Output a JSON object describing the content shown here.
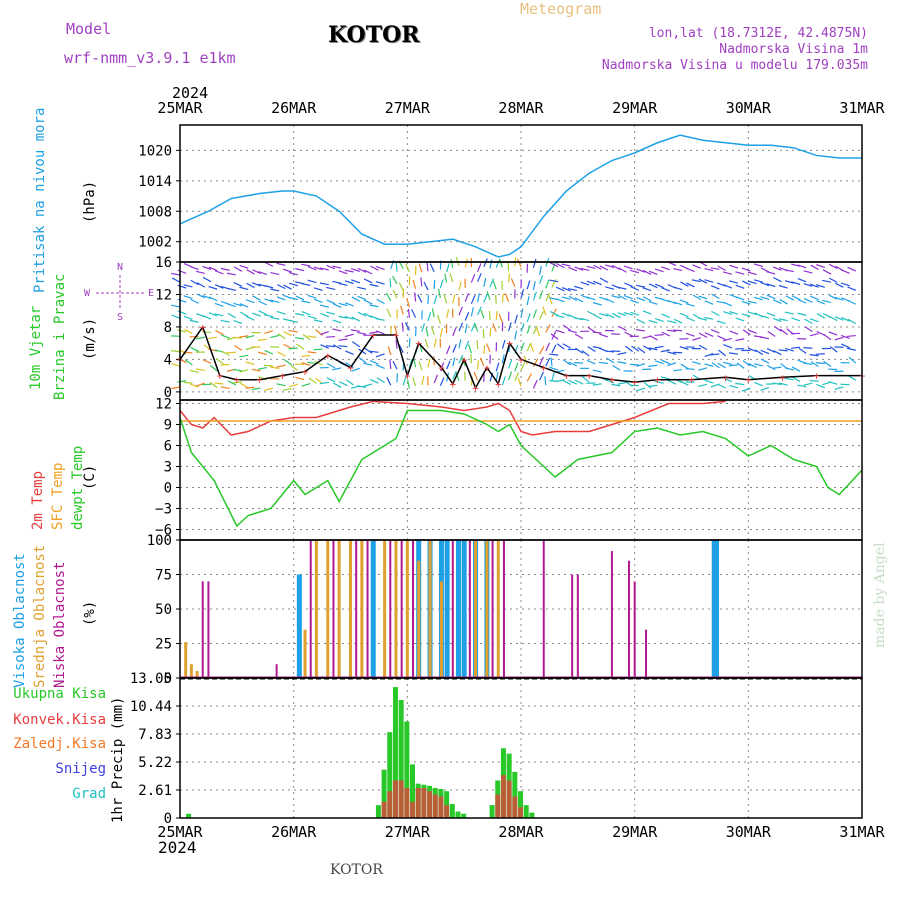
{
  "header": {
    "model_label": "Model",
    "model_name": "wrf-nmm_v3.9.1  e1km",
    "station": "KOTOR",
    "meteogram_label": "Meteogram",
    "lonlat": "lon,lat (18.7312E, 42.4875N)",
    "elevation": "Nadmorska Visina 1m",
    "model_elevation": "Nadmorska Visina u modelu 179.035m",
    "year": "2024",
    "footer_station": "KOTOR",
    "credit": "made by Angel",
    "wind_compass": {
      "n": "N",
      "s": "S",
      "e": "E",
      "w": "W"
    }
  },
  "colors": {
    "pressure": "#1ea0e6",
    "temp2m": "#e83c3c",
    "sfc_temp": "#f0a020",
    "dewpoint": "#28c828",
    "high_cloud": "#1ea0e6",
    "mid_cloud": "#e0a030",
    "low_cloud": "#b01890",
    "total_precip": "#28c828",
    "conv_precip": "#e83c3c",
    "freezing_precip": "#f07828",
    "snow": "#4040e0",
    "hail": "#20c0c0",
    "title_purple": "#a040c0"
  },
  "chart_data": [
    {
      "type": "line",
      "id": "pressure",
      "ylabel": "Pritisak na nivou mora",
      "unit": "(hPa)",
      "yticks": [
        1002,
        1008,
        1014,
        1020
      ],
      "ylim": [
        998,
        1025
      ],
      "x_days": [
        "25MAR",
        "26MAR",
        "27MAR",
        "28MAR",
        "29MAR",
        "30MAR",
        "31MAR"
      ],
      "x": [
        0,
        0.1,
        0.25,
        0.45,
        0.7,
        0.9,
        1.0,
        1.2,
        1.4,
        1.6,
        1.8,
        2.0,
        2.2,
        2.4,
        2.6,
        2.8,
        2.9,
        3.0,
        3.2,
        3.4,
        3.6,
        3.8,
        4.0,
        4.2,
        4.4,
        4.6,
        4.8,
        5.0,
        5.2,
        5.4,
        5.6,
        5.8,
        6.0
      ],
      "y": [
        1005.5,
        1006.5,
        1008,
        1010.5,
        1011.5,
        1012,
        1012,
        1011,
        1008,
        1003.5,
        1001.5,
        1001.5,
        1002,
        1002.5,
        1001,
        999,
        999.5,
        1001,
        1007,
        1012,
        1015.5,
        1018,
        1019.5,
        1021.5,
        1023,
        1022,
        1021.5,
        1021,
        1021,
        1020.5,
        1019,
        1018.5,
        1018.5
      ],
      "grid": true
    },
    {
      "type": "line",
      "id": "wind",
      "ylabel": "10m Vjetar Brzina i Pravac",
      "unit": "(m/s)",
      "yticks": [
        0,
        4,
        8,
        12,
        16
      ],
      "ylim": [
        -1,
        16
      ],
      "series": [
        {
          "name": "speed",
          "x": [
            0,
            0.2,
            0.35,
            0.5,
            0.7,
            0.9,
            1.1,
            1.3,
            1.5,
            1.7,
            1.9,
            2.0,
            2.1,
            2.3,
            2.4,
            2.5,
            2.6,
            2.7,
            2.8,
            2.9,
            3.0,
            3.2,
            3.4,
            3.6,
            3.8,
            4.0,
            4.2,
            4.5,
            4.8,
            5.0,
            5.3,
            5.6,
            6.0
          ],
          "y": [
            4,
            8,
            2,
            1.5,
            1.5,
            2,
            2.5,
            4.5,
            3,
            7,
            7,
            2,
            6,
            3,
            1,
            4,
            0.5,
            3,
            1,
            6,
            4,
            3,
            2,
            2,
            1.5,
            1.2,
            1.5,
            1.5,
            1.8,
            1.5,
            1.8,
            2,
            2
          ]
        }
      ],
      "grid": true
    },
    {
      "type": "line",
      "id": "temperature",
      "ylabel": "",
      "unit": "(C)",
      "yticks": [
        -6,
        -3,
        0,
        3,
        6,
        9,
        12
      ],
      "ylim": [
        -7.5,
        12.5
      ],
      "series": [
        {
          "name": "2m Temp",
          "x": [
            0,
            0.1,
            0.2,
            0.3,
            0.45,
            0.6,
            0.8,
            1.0,
            1.2,
            1.4,
            1.5,
            1.7,
            2.0,
            2.3,
            2.5,
            2.7,
            2.8,
            2.9,
            3.0,
            3.1,
            3.3,
            3.6,
            4.0,
            4.3,
            4.6,
            4.8
          ],
          "y": [
            11,
            9,
            8.5,
            10,
            7.5,
            8,
            9.5,
            10,
            10,
            11,
            11.5,
            12.5,
            12,
            11.5,
            11,
            11.5,
            12,
            11,
            8,
            7.5,
            8,
            8,
            10,
            12,
            12,
            12.5
          ]
        },
        {
          "name": "SFC Temp",
          "x": [
            0,
            6
          ],
          "y": [
            9.5,
            9.5
          ]
        },
        {
          "name": "dewpt Temp",
          "x": [
            0,
            0.1,
            0.3,
            0.5,
            0.6,
            0.8,
            0.9,
            1.0,
            1.1,
            1.3,
            1.4,
            1.6,
            1.9,
            2.0,
            2.3,
            2.5,
            2.7,
            2.8,
            2.9,
            3.0,
            3.2,
            3.3,
            3.5,
            3.8,
            4.0,
            4.2,
            4.4,
            4.6,
            4.8,
            5.0,
            5.2,
            5.4,
            5.6,
            5.7,
            5.8,
            6.0
          ],
          "y": [
            10,
            5,
            1,
            -5.5,
            -4,
            -3,
            -1,
            1,
            -1,
            1,
            -2,
            4,
            7,
            11,
            11,
            10.5,
            9,
            8,
            9,
            6,
            3,
            1.5,
            4,
            5,
            8,
            8.5,
            7.5,
            8,
            7,
            4.5,
            6,
            4,
            3,
            0,
            -1,
            2.5
          ]
        }
      ],
      "grid": true
    },
    {
      "type": "bar",
      "id": "cloud",
      "ylabel": "",
      "unit": "(%)",
      "yticks": [
        0,
        25,
        50,
        75,
        100
      ],
      "ylim": [
        0,
        100
      ],
      "series": [
        {
          "name": "Visoka Oblacnost",
          "x": [
            1.05,
            1.7,
            2.1,
            2.2,
            2.3,
            2.35,
            2.45,
            2.5,
            2.6,
            2.7,
            4.7,
            4.72
          ],
          "values": [
            75,
            100,
            100,
            100,
            100,
            100,
            100,
            100,
            100,
            100,
            100,
            100
          ]
        },
        {
          "name": "Srednja Oblacnost",
          "x": [
            0.05,
            0.1,
            0.15,
            1.1,
            1.2,
            1.3,
            1.4,
            1.5,
            1.6,
            1.8,
            1.9,
            2.0,
            2.1,
            2.2,
            2.3,
            2.6,
            2.7,
            2.8
          ],
          "values": [
            26,
            10,
            5,
            35,
            100,
            100,
            100,
            100,
            100,
            100,
            100,
            100,
            85,
            100,
            70,
            100,
            100,
            100
          ]
        },
        {
          "name": "Niska Oblacnost",
          "x": [
            0.2,
            0.25,
            0.85,
            1.15,
            1.35,
            1.55,
            1.65,
            1.85,
            1.95,
            2.05,
            2.4,
            2.55,
            2.75,
            2.85,
            3.2,
            3.45,
            3.5,
            3.8,
            3.95,
            4.0,
            4.1
          ],
          "values": [
            70,
            70,
            10,
            100,
            100,
            100,
            100,
            100,
            100,
            100,
            100,
            100,
            100,
            100,
            100,
            75,
            75,
            92,
            85,
            70,
            35
          ]
        }
      ],
      "grid": true
    },
    {
      "type": "bar",
      "id": "precip",
      "ylabel": "1hr Precip",
      "unit": "(mm)",
      "yticks": [
        0,
        2.61,
        5.22,
        7.83,
        10.44,
        13.05
      ],
      "ylim": [
        0,
        13.05
      ],
      "series": [
        {
          "name": "Ukupna Kisa",
          "x": [
            0.08,
            1.75,
            1.8,
            1.85,
            1.9,
            1.95,
            2.0,
            2.05,
            2.1,
            2.15,
            2.2,
            2.25,
            2.3,
            2.35,
            2.4,
            2.45,
            2.5,
            2.75,
            2.8,
            2.85,
            2.9,
            2.95,
            3.0,
            3.05,
            3.1
          ],
          "values": [
            0.4,
            1.2,
            4.5,
            8,
            12.2,
            11,
            9,
            5,
            3.2,
            3.1,
            3,
            2.8,
            2.7,
            2.5,
            1.3,
            0.6,
            0.4,
            1.2,
            3.5,
            6.5,
            6,
            4.3,
            2.5,
            1.2,
            0.5
          ]
        },
        {
          "name": "Konvek.Kisa",
          "x": [
            1.8,
            1.85,
            1.9,
            1.95,
            2.0,
            2.05,
            2.1,
            2.15,
            2.2,
            2.25,
            2.3,
            2.35,
            2.8,
            2.85,
            2.9,
            2.95,
            3.0
          ],
          "values": [
            1.5,
            2.5,
            3.5,
            3.5,
            2.8,
            1.5,
            2.8,
            2.8,
            2.5,
            2.2,
            2,
            1.2,
            2.2,
            4,
            3.5,
            2,
            1
          ]
        },
        {
          "name": "Zaledj.Kisa",
          "x": [],
          "values": []
        },
        {
          "name": "Snijeg",
          "x": [],
          "values": []
        },
        {
          "name": "Grad",
          "x": [],
          "values": []
        }
      ],
      "grid": true
    }
  ],
  "labels": {
    "pressure": "Pritisak na nivou mora",
    "pressure_unit": "(hPa)",
    "wind1": "10m Vjetar",
    "wind2": "Brzina i Pravac",
    "wind_unit": "(m/s)",
    "t2m": "2m Temp",
    "tsfc": "SFC Temp",
    "tdew": "dewpt Temp",
    "temp_unit": "(C)",
    "cloud_high": "Visoka Oblacnost",
    "cloud_mid": "Srednja Oblacnost",
    "cloud_low": "Niska Oblacnost",
    "cloud_unit": "(%)",
    "precip_unit_label": "1hr Precip (mm)",
    "precip_total": "Ukupna Kisa",
    "precip_conv": "Konvek.Kisa",
    "precip_frz": "Zaledj.Kisa",
    "precip_snow": "Snijeg",
    "precip_hail": "Grad"
  }
}
